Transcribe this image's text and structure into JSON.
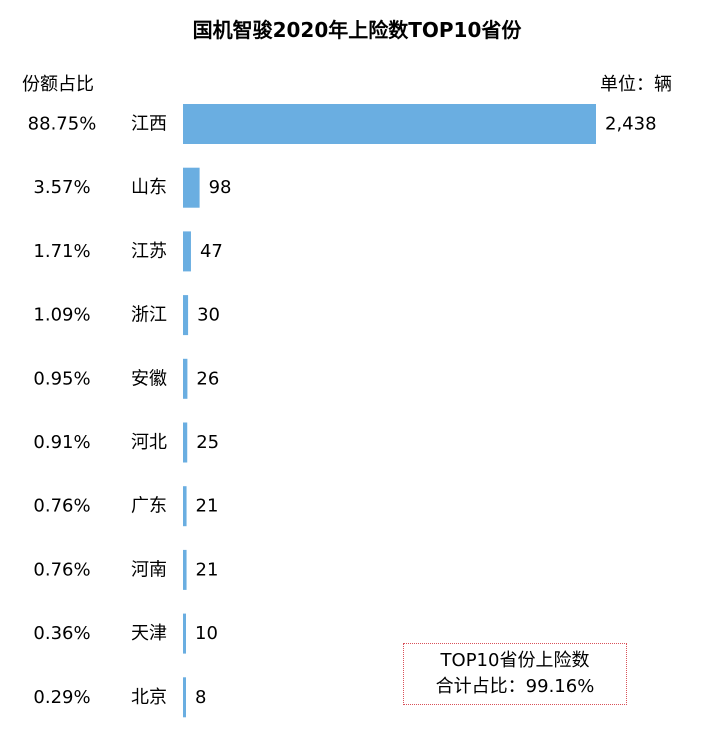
{
  "chart_data": {
    "type": "bar",
    "orientation": "horizontal",
    "title": "国机智骏2020年上险数TOP10省份",
    "unit_label": "单位：辆",
    "share_header": "份额占比",
    "categories": [
      "江西",
      "山东",
      "江苏",
      "浙江",
      "安徽",
      "河北",
      "广东",
      "河南",
      "天津",
      "北京"
    ],
    "values": [
      2438,
      98,
      47,
      30,
      26,
      25,
      21,
      21,
      10,
      8
    ],
    "value_labels": [
      "2,438",
      "98",
      "47",
      "30",
      "26",
      "25",
      "21",
      "21",
      "10",
      "8"
    ],
    "shares": [
      "88.75%",
      "3.57%",
      "1.71%",
      "1.09%",
      "0.95%",
      "0.91%",
      "0.76%",
      "0.76%",
      "0.36%",
      "0.29%"
    ],
    "bar_color": "#6aaee1",
    "annotation": {
      "line1": "TOP10省份上险数",
      "line2": "合计占比：99.16%",
      "border_color": "#d9515a"
    }
  }
}
